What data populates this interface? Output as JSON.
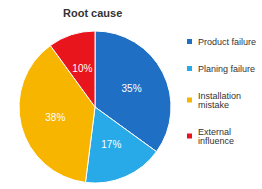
{
  "chart_data": {
    "type": "pie",
    "title": "Root cause",
    "categories": [
      "Product failure",
      "Planing failure",
      "Installation mistake",
      "External influence"
    ],
    "values": [
      35,
      17,
      38,
      10
    ],
    "value_labels": [
      "35%",
      "17%",
      "38%",
      "10%"
    ],
    "colors": [
      "#1f6fc5",
      "#29aae8",
      "#f7b500",
      "#e8151c"
    ],
    "data_labels": true,
    "legend": "right"
  }
}
